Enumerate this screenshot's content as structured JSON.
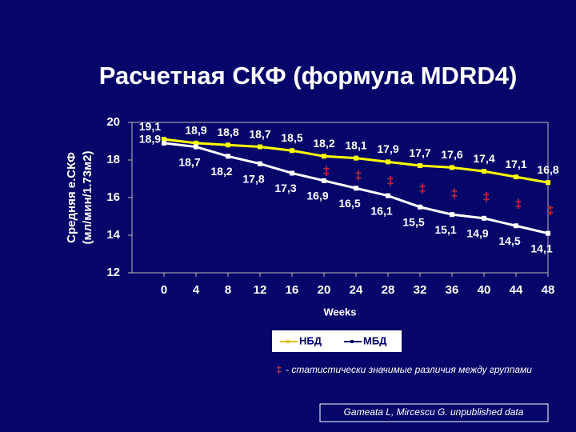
{
  "chart_data": {
    "type": "line",
    "title": "Расчетная СКФ (формула MDRD4)",
    "ylabel": [
      "Средняя е.СКФ",
      "(мл/мин/1.73м2)"
    ],
    "xlabel": "Weeks",
    "x": [
      0,
      4,
      8,
      12,
      16,
      20,
      24,
      28,
      32,
      36,
      40,
      44,
      48
    ],
    "xlim": [
      -4,
      48
    ],
    "xticks": [
      0,
      4,
      8,
      12,
      16,
      20,
      24,
      28,
      32,
      36,
      40,
      44,
      48
    ],
    "ylim": [
      12,
      20
    ],
    "yticks": [
      12,
      14,
      16,
      18,
      20
    ],
    "series": [
      {
        "name": "НБД",
        "color": "#ffff00",
        "values": [
          19.1,
          18.9,
          18.8,
          18.7,
          18.5,
          18.2,
          18.1,
          17.9,
          17.7,
          17.6,
          17.4,
          17.1,
          16.8
        ],
        "value_labels": [
          "19,1",
          "18,9",
          "18,8",
          "18,7",
          "18,5",
          "18,2",
          "18,1",
          "17,9",
          "17,7",
          "17,6",
          "17,4",
          "17,1",
          "16,8"
        ]
      },
      {
        "name": "МБД",
        "color": "#ffffff",
        "values": [
          18.9,
          18.7,
          18.2,
          17.8,
          17.3,
          16.9,
          16.5,
          16.1,
          15.5,
          15.1,
          14.9,
          14.5,
          14.1
        ],
        "value_labels": [
          "18,9",
          "18,7",
          "18,2",
          "17,8",
          "17,3",
          "16,9",
          "16,5",
          "16,1",
          "15,5",
          "15,1",
          "14,9",
          "14,5",
          "14,1"
        ]
      }
    ],
    "legend": "bottom",
    "annotations": [
      {
        "x": 20,
        "text": "‡"
      },
      {
        "x": 24,
        "text": "‡"
      },
      {
        "x": 28,
        "text": "‡"
      },
      {
        "x": 32,
        "text": "‡"
      },
      {
        "x": 36,
        "text": "‡"
      },
      {
        "x": 40,
        "text": "‡"
      },
      {
        "x": 44,
        "text": "‡"
      },
      {
        "x": 48,
        "text": "‡"
      }
    ],
    "footnote": {
      "marker": "‡",
      "text": "- статистически значимые различия  между группами"
    },
    "citation": "Gameata L, Mircescu G. unpublished data"
  }
}
